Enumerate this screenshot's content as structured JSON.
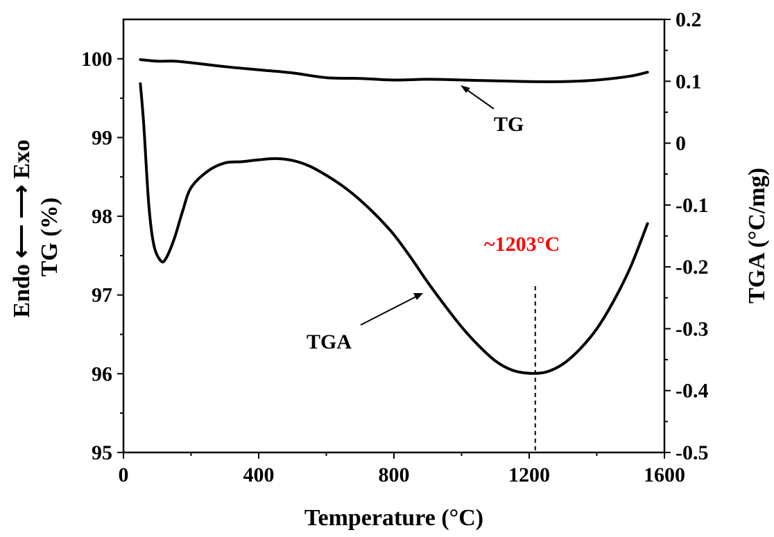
{
  "chart_data": {
    "type": "line",
    "xlabel": "Temperature (°C)",
    "ylabel_left": "TG (%)",
    "ylabel_left_extra": "Endo ⟵ ⟶ Exo",
    "ylabel_right": "TGA (°C/mg)",
    "xlim": [
      0,
      1600
    ],
    "ylim_left": [
      95,
      100.5
    ],
    "ylim_right": [
      -0.5,
      0.2
    ],
    "x_ticks": [
      "0",
      "400",
      "800",
      "1200",
      "1600"
    ],
    "y_left_ticks": [
      "95",
      "96",
      "97",
      "98",
      "99",
      "100"
    ],
    "y_right_ticks": [
      "-0.5",
      "-0.4",
      "-0.3",
      "-0.2",
      "-0.1",
      "0",
      "0.1",
      "0.2"
    ],
    "grid": false,
    "series": [
      {
        "name": "TG",
        "axis": "left",
        "x": [
          50,
          100,
          150,
          200,
          300,
          400,
          500,
          600,
          700,
          800,
          900,
          1000,
          1100,
          1200,
          1300,
          1400,
          1500,
          1550
        ],
        "y": [
          99.99,
          99.97,
          99.97,
          99.95,
          99.9,
          99.86,
          99.82,
          99.76,
          99.75,
          99.73,
          99.74,
          99.73,
          99.72,
          99.71,
          99.71,
          99.73,
          99.78,
          99.83
        ]
      },
      {
        "name": "TGA",
        "axis": "right",
        "x": [
          50,
          60,
          75,
          90,
          110,
          125,
          150,
          175,
          200,
          250,
          300,
          350,
          400,
          450,
          500,
          550,
          600,
          650,
          700,
          750,
          800,
          850,
          900,
          950,
          1000,
          1050,
          1100,
          1150,
          1200,
          1250,
          1300,
          1350,
          1400,
          1450,
          1500,
          1550
        ],
        "y": [
          0.096,
          0.03,
          -0.1,
          -0.165,
          -0.19,
          -0.187,
          -0.155,
          -0.11,
          -0.072,
          -0.045,
          -0.032,
          -0.03,
          -0.027,
          -0.025,
          -0.028,
          -0.037,
          -0.052,
          -0.07,
          -0.092,
          -0.118,
          -0.148,
          -0.185,
          -0.225,
          -0.262,
          -0.297,
          -0.327,
          -0.352,
          -0.367,
          -0.372,
          -0.37,
          -0.357,
          -0.333,
          -0.3,
          -0.255,
          -0.2,
          -0.13
        ]
      }
    ],
    "annotations": {
      "tg_label": "TG",
      "tga_label": "TGA",
      "peak_label": "~1203°C",
      "peak_x": 1218,
      "peak_color": "#ff0000"
    }
  }
}
